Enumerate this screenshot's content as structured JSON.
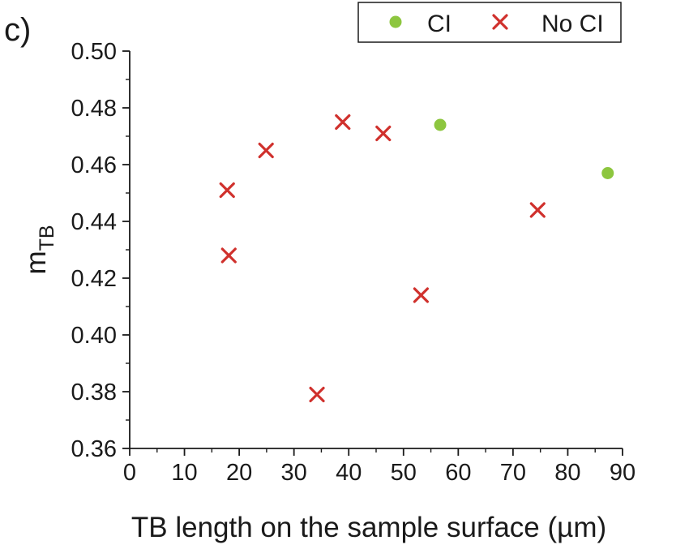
{
  "panel_label": "c)",
  "chart_data": {
    "type": "scatter",
    "title": "",
    "xlabel": "TB length on the sample surface (µm)",
    "ylabel_main": "m",
    "ylabel_sub": "TB",
    "xlim": [
      0,
      90
    ],
    "ylim": [
      0.36,
      0.5
    ],
    "xticks": [
      "0",
      "10",
      "20",
      "30",
      "40",
      "50",
      "60",
      "70",
      "80",
      "90"
    ],
    "yticks": [
      "0.36",
      "0.38",
      "0.40",
      "0.42",
      "0.44",
      "0.46",
      "0.48",
      "0.50"
    ],
    "grid": false,
    "legend_position": "top-right",
    "series": [
      {
        "name": "CI",
        "marker": "circle",
        "color": "#8dc63f",
        "points": [
          {
            "x": 56.7,
            "y": 0.474
          },
          {
            "x": 87.3,
            "y": 0.457
          }
        ]
      },
      {
        "name": "No CI",
        "marker": "cross",
        "color": "#d0312d",
        "points": [
          {
            "x": 17.8,
            "y": 0.451
          },
          {
            "x": 18.1,
            "y": 0.428
          },
          {
            "x": 24.9,
            "y": 0.465
          },
          {
            "x": 34.2,
            "y": 0.379
          },
          {
            "x": 38.9,
            "y": 0.475
          },
          {
            "x": 46.3,
            "y": 0.471
          },
          {
            "x": 53.2,
            "y": 0.414
          },
          {
            "x": 74.5,
            "y": 0.444
          }
        ]
      }
    ]
  }
}
